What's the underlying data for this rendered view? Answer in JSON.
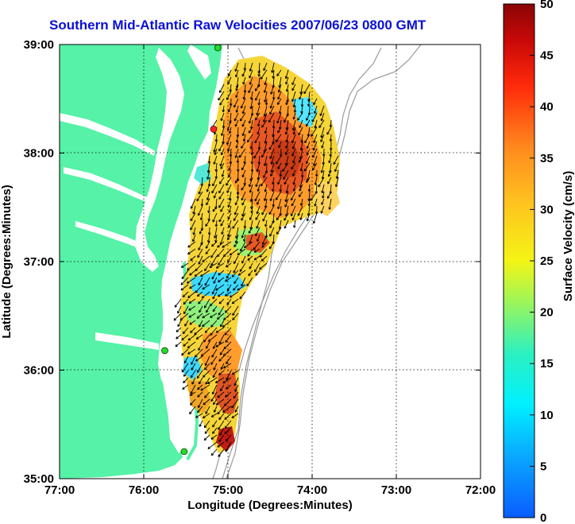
{
  "title": "Southern Mid-Atlantic Raw Velocities 2007/06/23 0800 GMT",
  "x_axis": {
    "label": "Longitude (Degrees:Minutes)",
    "ticks": [
      {
        "value": -77,
        "label": "77:00"
      },
      {
        "value": -76,
        "label": "76:00"
      },
      {
        "value": -75,
        "label": "75:00"
      },
      {
        "value": -74,
        "label": "74:00"
      },
      {
        "value": -73,
        "label": "73:00"
      },
      {
        "value": -72,
        "label": "72:00"
      }
    ],
    "range": [
      -77,
      -72
    ]
  },
  "y_axis": {
    "label": "Latitude (Degrees:Minutes)",
    "ticks": [
      {
        "value": 39,
        "label": "39:00"
      },
      {
        "value": 38,
        "label": "38:00"
      },
      {
        "value": 37,
        "label": "37:00"
      },
      {
        "value": 36,
        "label": "36:00"
      },
      {
        "value": 35,
        "label": "35:00"
      }
    ],
    "range": [
      35,
      39
    ]
  },
  "colorbar": {
    "label": "Surface Velocity (cm/s)",
    "range": [
      0,
      50
    ],
    "ticks": [
      {
        "value": 50,
        "label": "50"
      },
      {
        "value": 45,
        "label": "45"
      },
      {
        "value": 40,
        "label": "40"
      },
      {
        "value": 35,
        "label": "35"
      },
      {
        "value": 30,
        "label": "30"
      },
      {
        "value": 25,
        "label": "25"
      },
      {
        "value": 20,
        "label": "20"
      },
      {
        "value": 15,
        "label": "15"
      },
      {
        "value": 10,
        "label": "10"
      },
      {
        "value": 5,
        "label": "5"
      },
      {
        "value": 0,
        "label": "0"
      }
    ]
  },
  "colors": {
    "land": "#55f2a7",
    "title": "#0a10d8",
    "arrow": "#000000",
    "bathymetry": "#9a9a9a",
    "station": "#22dd22",
    "station_alt": "#ff2222"
  },
  "stations": [
    {
      "lon": -75.12,
      "lat": 38.97,
      "color": "green"
    },
    {
      "lon": -75.17,
      "lat": 38.22,
      "color": "red"
    },
    {
      "lon": -75.75,
      "lat": 36.18,
      "color": "green"
    },
    {
      "lon": -75.52,
      "lat": 35.25,
      "color": "green"
    }
  ]
}
